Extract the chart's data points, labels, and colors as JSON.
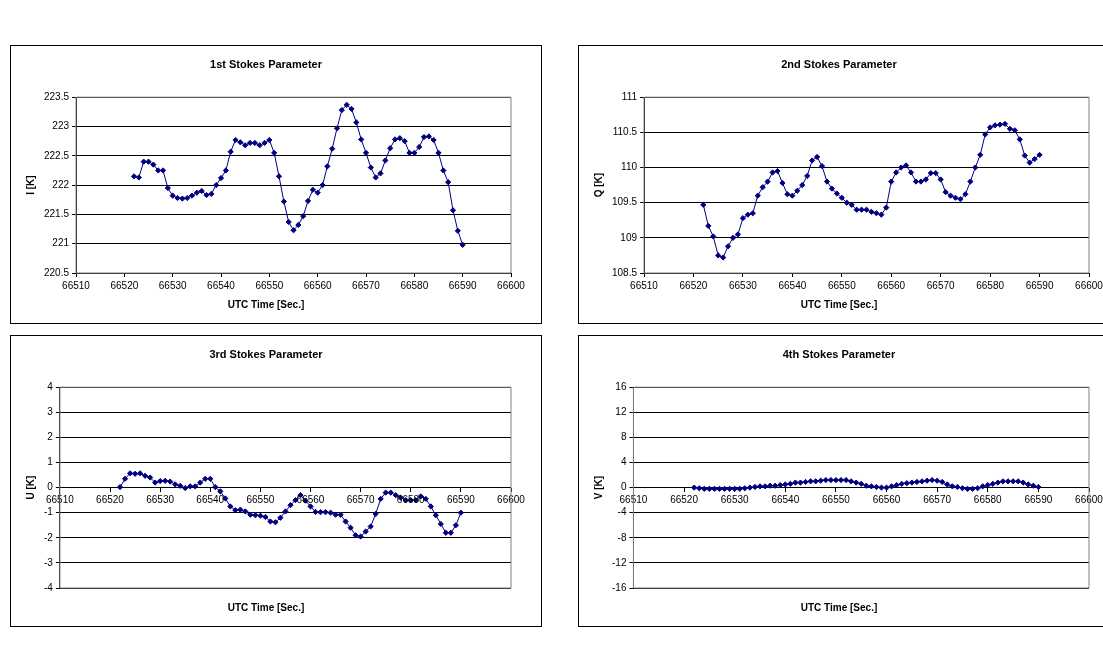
{
  "chart_data": [
    {
      "type": "line",
      "title": "1st Stokes Parameter",
      "xlabel": "UTC Time [Sec.]",
      "ylabel": "I [K]",
      "marker": "diamond",
      "grid": "y",
      "xlim": [
        66510,
        66600
      ],
      "xticks": [
        66510,
        66520,
        66530,
        66540,
        66550,
        66560,
        66570,
        66580,
        66590,
        66600
      ],
      "ylim": [
        220.5,
        223.5
      ],
      "yticks": [
        220.5,
        221,
        221.5,
        222,
        222.5,
        223,
        223.5
      ],
      "series": [
        {
          "color": "#000080",
          "x": [
            66522,
            66523,
            66524,
            66525,
            66526,
            66527,
            66528,
            66529,
            66530,
            66531,
            66532,
            66533,
            66534,
            66535,
            66536,
            66537,
            66538,
            66539,
            66540,
            66541,
            66542,
            66543,
            66544,
            66545,
            66546,
            66547,
            66548,
            66549,
            66550,
            66551,
            66552,
            66553,
            66554,
            66555,
            66556,
            66557,
            66558,
            66559,
            66560,
            66561,
            66562,
            66563,
            66564,
            66565,
            66566,
            66567,
            66568,
            66569,
            66570,
            66571,
            66572,
            66573,
            66574,
            66575,
            66576,
            66577,
            66578,
            66579,
            66580,
            66581,
            66582,
            66583,
            66584,
            66585,
            66586,
            66587,
            66588,
            66589,
            66590
          ],
          "values": [
            222.15,
            222.13,
            222.4,
            222.4,
            222.35,
            222.25,
            222.25,
            221.95,
            221.82,
            221.78,
            221.77,
            221.78,
            221.82,
            221.87,
            221.9,
            221.83,
            221.85,
            222.0,
            222.12,
            222.25,
            222.57,
            222.77,
            222.73,
            222.68,
            222.72,
            222.72,
            222.68,
            222.72,
            222.77,
            222.55,
            222.15,
            221.72,
            221.37,
            221.23,
            221.32,
            221.47,
            221.73,
            221.92,
            221.87,
            222.0,
            222.32,
            222.62,
            222.97,
            223.28,
            223.37,
            223.3,
            223.07,
            222.78,
            222.55,
            222.3,
            222.13,
            222.2,
            222.42,
            222.63,
            222.78,
            222.8,
            222.75,
            222.55,
            222.55,
            222.65,
            222.82,
            222.83,
            222.77,
            222.55,
            222.25,
            222.05,
            221.57,
            221.22,
            220.98
          ]
        }
      ]
    },
    {
      "type": "line",
      "title": "2nd Stokes Parameter",
      "xlabel": "UTC Time [Sec.]",
      "ylabel": "Q [K]",
      "marker": "diamond",
      "grid": "y",
      "xlim": [
        66510,
        66600
      ],
      "xticks": [
        66510,
        66520,
        66530,
        66540,
        66550,
        66560,
        66570,
        66580,
        66590,
        66600
      ],
      "ylim": [
        108.5,
        111
      ],
      "yticks": [
        108.5,
        109,
        109.5,
        110,
        110.5,
        111
      ],
      "series": [
        {
          "color": "#000080",
          "x": [
            66522,
            66523,
            66524,
            66525,
            66526,
            66527,
            66528,
            66529,
            66530,
            66531,
            66532,
            66533,
            66534,
            66535,
            66536,
            66537,
            66538,
            66539,
            66540,
            66541,
            66542,
            66543,
            66544,
            66545,
            66546,
            66547,
            66548,
            66549,
            66550,
            66551,
            66552,
            66553,
            66554,
            66555,
            66556,
            66557,
            66558,
            66559,
            66560,
            66561,
            66562,
            66563,
            66564,
            66565,
            66566,
            66567,
            66568,
            66569,
            66570,
            66571,
            66572,
            66573,
            66574,
            66575,
            66576,
            66577,
            66578,
            66579,
            66580,
            66581,
            66582,
            66583,
            66584,
            66585,
            66586,
            66587,
            66588,
            66589,
            66590
          ],
          "values": [
            109.47,
            109.17,
            109.02,
            108.75,
            108.72,
            108.88,
            109.0,
            109.05,
            109.28,
            109.33,
            109.35,
            109.6,
            109.72,
            109.8,
            109.93,
            109.95,
            109.78,
            109.62,
            109.6,
            109.67,
            109.75,
            109.88,
            110.1,
            110.15,
            110.02,
            109.8,
            109.7,
            109.63,
            109.57,
            109.5,
            109.47,
            109.4,
            109.4,
            109.4,
            109.37,
            109.35,
            109.33,
            109.43,
            109.8,
            109.93,
            110.0,
            110.03,
            109.93,
            109.8,
            109.8,
            109.83,
            109.92,
            109.92,
            109.83,
            109.65,
            109.6,
            109.57,
            109.55,
            109.62,
            109.8,
            110.0,
            110.18,
            110.47,
            110.57,
            110.6,
            110.61,
            110.62,
            110.55,
            110.53,
            110.4,
            110.17,
            110.07,
            110.12,
            110.18
          ]
        }
      ]
    },
    {
      "type": "line",
      "title": "3rd Stokes Parameter",
      "xlabel": "UTC Time [Sec.]",
      "ylabel": "U [K]",
      "marker": "diamond",
      "grid": "y",
      "xlim": [
        66510,
        66600
      ],
      "xticks": [
        66510,
        66520,
        66530,
        66540,
        66550,
        66560,
        66570,
        66580,
        66590,
        66600
      ],
      "ylim": [
        -4,
        4
      ],
      "yticks": [
        -4,
        -3,
        -2,
        -1,
        0,
        1,
        2,
        3,
        4
      ],
      "series": [
        {
          "color": "#000080",
          "x": [
            66522,
            66523,
            66524,
            66525,
            66526,
            66527,
            66528,
            66529,
            66530,
            66531,
            66532,
            66533,
            66534,
            66535,
            66536,
            66537,
            66538,
            66539,
            66540,
            66541,
            66542,
            66543,
            66544,
            66545,
            66546,
            66547,
            66548,
            66549,
            66550,
            66551,
            66552,
            66553,
            66554,
            66555,
            66556,
            66557,
            66558,
            66559,
            66560,
            66561,
            66562,
            66563,
            66564,
            66565,
            66566,
            66567,
            66568,
            66569,
            66570,
            66571,
            66572,
            66573,
            66574,
            66575,
            66576,
            66577,
            66578,
            66579,
            66580,
            66581,
            66582,
            66583,
            66584,
            66585,
            66586,
            66587,
            66588,
            66589,
            66590
          ],
          "values": [
            0.02,
            0.35,
            0.57,
            0.55,
            0.57,
            0.47,
            0.4,
            0.2,
            0.26,
            0.27,
            0.24,
            0.13,
            0.07,
            -0.02,
            0.05,
            0.05,
            0.2,
            0.35,
            0.35,
            0.02,
            -0.15,
            -0.43,
            -0.75,
            -0.9,
            -0.88,
            -0.95,
            -1.08,
            -1.1,
            -1.12,
            -1.17,
            -1.35,
            -1.38,
            -1.2,
            -0.95,
            -0.7,
            -0.5,
            -0.3,
            -0.52,
            -0.75,
            -0.97,
            -0.98,
            -0.98,
            -1.0,
            -1.08,
            -1.08,
            -1.35,
            -1.6,
            -1.9,
            -1.95,
            -1.75,
            -1.55,
            -1.05,
            -0.45,
            -0.2,
            -0.2,
            -0.3,
            -0.4,
            -0.5,
            -0.5,
            -0.5,
            -0.35,
            -0.45,
            -0.75,
            -1.1,
            -1.45,
            -1.8,
            -1.8,
            -1.5,
            -1.0
          ]
        }
      ]
    },
    {
      "type": "line",
      "title": "4th Stokes Parameter",
      "xlabel": "UTC Time [Sec.]",
      "ylabel": "V [K]",
      "marker": "diamond",
      "grid": "y",
      "xlim": [
        66510,
        66600
      ],
      "xticks": [
        66510,
        66520,
        66530,
        66540,
        66550,
        66560,
        66570,
        66580,
        66590,
        66600
      ],
      "ylim": [
        -16,
        16
      ],
      "yticks": [
        -16,
        -12,
        -8,
        -4,
        0,
        4,
        8,
        12,
        16
      ],
      "series": [
        {
          "color": "#000080",
          "x": [
            66522,
            66523,
            66524,
            66525,
            66526,
            66527,
            66528,
            66529,
            66530,
            66531,
            66532,
            66533,
            66534,
            66535,
            66536,
            66537,
            66538,
            66539,
            66540,
            66541,
            66542,
            66543,
            66544,
            66545,
            66546,
            66547,
            66548,
            66549,
            66550,
            66551,
            66552,
            66553,
            66554,
            66555,
            66556,
            66557,
            66558,
            66559,
            66560,
            66561,
            66562,
            66563,
            66564,
            66565,
            66566,
            66567,
            66568,
            66569,
            66570,
            66571,
            66572,
            66573,
            66574,
            66575,
            66576,
            66577,
            66578,
            66579,
            66580,
            66581,
            66582,
            66583,
            66584,
            66585,
            66586,
            66587,
            66588,
            66589,
            66590
          ],
          "values": [
            0,
            -0.1,
            -0.2,
            -0.2,
            -0.2,
            -0.2,
            -0.2,
            -0.2,
            -0.2,
            -0.2,
            -0.1,
            0,
            0.1,
            0.2,
            0.2,
            0.3,
            0.3,
            0.4,
            0.5,
            0.6,
            0.8,
            0.8,
            0.9,
            1.0,
            1.0,
            1.1,
            1.2,
            1.2,
            1.2,
            1.2,
            1.2,
            1.0,
            0.8,
            0.6,
            0.3,
            0.2,
            0.1,
            0,
            0,
            0.2,
            0.4,
            0.6,
            0.7,
            0.8,
            0.9,
            1.0,
            1.1,
            1.2,
            1.1,
            0.9,
            0.5,
            0.2,
            0.1,
            -0.1,
            -0.2,
            -0.2,
            -0.1,
            0.2,
            0.4,
            0.6,
            0.8,
            1.0,
            1.0,
            1.0,
            1.0,
            0.8,
            0.5,
            0.3,
            0.1
          ]
        }
      ]
    }
  ]
}
